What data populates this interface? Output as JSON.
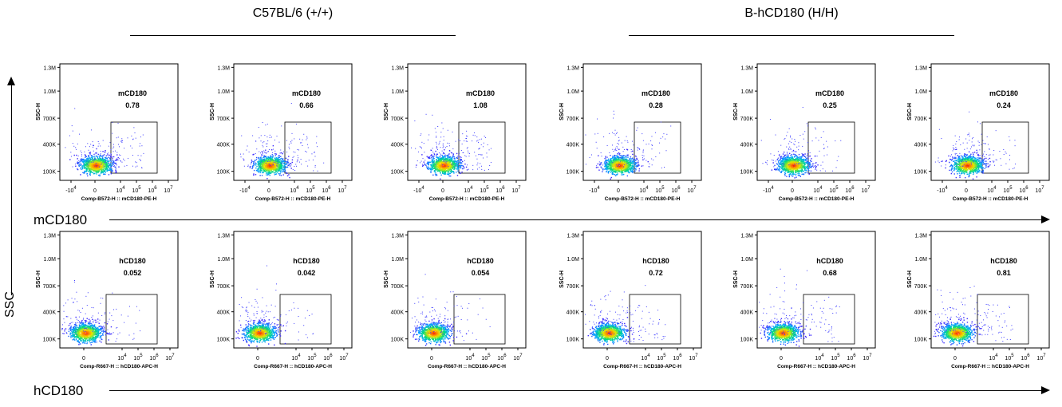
{
  "headers": {
    "left_group": "C57BL/6 (+/+)",
    "right_group": "B-hCD180 (H/H)"
  },
  "axis_labels": {
    "y_axis": "SSC",
    "row1_x": "mCD180",
    "row2_x": "hCD180"
  },
  "chart_data": [
    {
      "type": "scatter",
      "row": 1,
      "col": 1,
      "group": "C57BL/6 (+/+)",
      "gate_label": "mCD180",
      "gate_value": "0.78",
      "xlabel": "Comp-B572-H :: mCD180-PE-H",
      "ylabel": "SSC-H",
      "y_ticks": [
        "100K",
        "400K",
        "700K",
        "1.0M",
        "1.3M"
      ],
      "x_ticks": [
        "-10^4",
        "0",
        "10^4",
        "10^5",
        "10^6",
        "10^7"
      ]
    },
    {
      "type": "scatter",
      "row": 1,
      "col": 2,
      "group": "C57BL/6 (+/+)",
      "gate_label": "mCD180",
      "gate_value": "0.66",
      "xlabel": "Comp-B572-H :: mCD180-PE-H",
      "ylabel": "SSC-H",
      "y_ticks": [
        "100K",
        "400K",
        "700K",
        "1.0M",
        "1.3M"
      ],
      "x_ticks": [
        "-10^4",
        "0",
        "10^4",
        "10^5",
        "10^6",
        "10^7"
      ]
    },
    {
      "type": "scatter",
      "row": 1,
      "col": 3,
      "group": "C57BL/6 (+/+)",
      "gate_label": "mCD180",
      "gate_value": "1.08",
      "xlabel": "Comp-B572-H :: mCD180-PE-H",
      "ylabel": "SSC-H",
      "y_ticks": [
        "100K",
        "400K",
        "700K",
        "1.0M",
        "1.3M"
      ],
      "x_ticks": [
        "-10^4",
        "0",
        "10^4",
        "10^5",
        "10^6",
        "10^7"
      ]
    },
    {
      "type": "scatter",
      "row": 1,
      "col": 4,
      "group": "B-hCD180 (H/H)",
      "gate_label": "mCD180",
      "gate_value": "0.28",
      "xlabel": "Comp-B572-H :: mCD180-PE-H",
      "ylabel": "SSC-H",
      "y_ticks": [
        "100K",
        "400K",
        "700K",
        "1.0M",
        "1.3M"
      ],
      "x_ticks": [
        "-10^4",
        "0",
        "10^4",
        "10^5",
        "10^6",
        "10^7"
      ]
    },
    {
      "type": "scatter",
      "row": 1,
      "col": 5,
      "group": "B-hCD180 (H/H)",
      "gate_label": "mCD180",
      "gate_value": "0.25",
      "xlabel": "Comp-B572-H :: mCD180-PE-H",
      "ylabel": "SSC-H",
      "y_ticks": [
        "100K",
        "400K",
        "700K",
        "1.0M",
        "1.3M"
      ],
      "x_ticks": [
        "-10^4",
        "0",
        "10^4",
        "10^5",
        "10^6",
        "10^7"
      ]
    },
    {
      "type": "scatter",
      "row": 1,
      "col": 6,
      "group": "B-hCD180 (H/H)",
      "gate_label": "mCD180",
      "gate_value": "0.24",
      "xlabel": "Comp-B572-H :: mCD180-PE-H",
      "ylabel": "SSC-H",
      "y_ticks": [
        "100K",
        "400K",
        "700K",
        "1.0M",
        "1.3M"
      ],
      "x_ticks": [
        "-10^4",
        "0",
        "10^4",
        "10^5",
        "10^6",
        "10^7"
      ]
    },
    {
      "type": "scatter",
      "row": 2,
      "col": 1,
      "group": "C57BL/6 (+/+)",
      "gate_label": "hCD180",
      "gate_value": "0.052",
      "xlabel": "Comp-R667-H :: hCD180-APC-H",
      "ylabel": "SSC-H",
      "y_ticks": [
        "100K",
        "400K",
        "700K",
        "1.0M",
        "1.3M"
      ],
      "x_ticks": [
        "0",
        "10^4",
        "10^5",
        "10^6",
        "10^7"
      ]
    },
    {
      "type": "scatter",
      "row": 2,
      "col": 2,
      "group": "C57BL/6 (+/+)",
      "gate_label": "hCD180",
      "gate_value": "0.042",
      "xlabel": "Comp-R667-H :: hCD180-APC-H",
      "ylabel": "SSC-H",
      "y_ticks": [
        "100K",
        "400K",
        "700K",
        "1.0M",
        "1.3M"
      ],
      "x_ticks": [
        "0",
        "10^4",
        "10^5",
        "10^6",
        "10^7"
      ]
    },
    {
      "type": "scatter",
      "row": 2,
      "col": 3,
      "group": "C57BL/6 (+/+)",
      "gate_label": "hCD180",
      "gate_value": "0.054",
      "xlabel": "Comp-R667-H :: hCD180-APC-H",
      "ylabel": "SSC-H",
      "y_ticks": [
        "100K",
        "400K",
        "700K",
        "1.0M",
        "1.3M"
      ],
      "x_ticks": [
        "0",
        "10^4",
        "10^5",
        "10^6",
        "10^7"
      ]
    },
    {
      "type": "scatter",
      "row": 2,
      "col": 4,
      "group": "B-hCD180 (H/H)",
      "gate_label": "hCD180",
      "gate_value": "0.72",
      "xlabel": "Comp-R667-H :: hCD180-APC-H",
      "ylabel": "SSC-H",
      "y_ticks": [
        "100K",
        "400K",
        "700K",
        "1.0M",
        "1.3M"
      ],
      "x_ticks": [
        "0",
        "10^4",
        "10^5",
        "10^6",
        "10^7"
      ]
    },
    {
      "type": "scatter",
      "row": 2,
      "col": 5,
      "group": "B-hCD180 (H/H)",
      "gate_label": "hCD180",
      "gate_value": "0.68",
      "xlabel": "Comp-R667-H :: hCD180-APC-H",
      "ylabel": "SSC-H",
      "y_ticks": [
        "100K",
        "400K",
        "700K",
        "1.0M",
        "1.3M"
      ],
      "x_ticks": [
        "0",
        "10^4",
        "10^5",
        "10^6",
        "10^7"
      ]
    },
    {
      "type": "scatter",
      "row": 2,
      "col": 6,
      "group": "B-hCD180 (H/H)",
      "gate_label": "hCD180",
      "gate_value": "0.81",
      "xlabel": "Comp-R667-H :: hCD180-APC-H",
      "ylabel": "SSC-H",
      "y_ticks": [
        "100K",
        "400K",
        "700K",
        "1.0M",
        "1.3M"
      ],
      "x_ticks": [
        "0",
        "10^4",
        "10^5",
        "10^6",
        "10^7"
      ]
    }
  ]
}
